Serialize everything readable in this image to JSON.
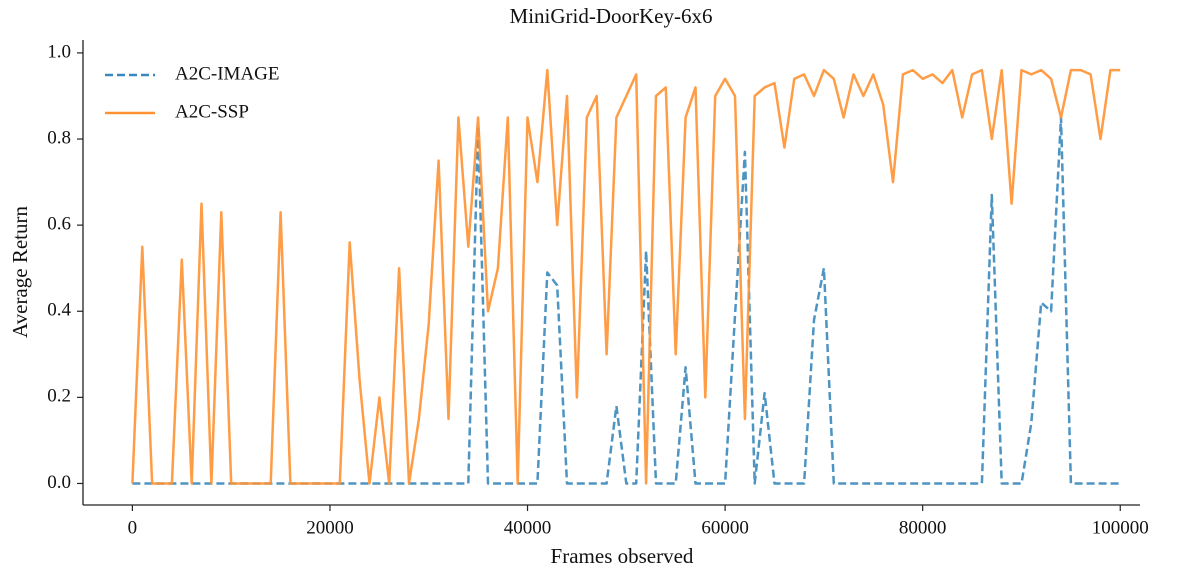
{
  "chart_data": {
    "type": "line",
    "title": "MiniGrid-DoorKey-6x6",
    "x_label": "Frames observed",
    "y_label": "Average Return",
    "x": [
      0,
      1000,
      2000,
      3000,
      4000,
      5000,
      6000,
      7000,
      8000,
      9000,
      10000,
      11000,
      12000,
      13000,
      14000,
      15000,
      16000,
      17000,
      18000,
      19000,
      20000,
      21000,
      22000,
      23000,
      24000,
      25000,
      26000,
      27000,
      28000,
      29000,
      30000,
      31000,
      32000,
      33000,
      34000,
      35000,
      36000,
      37000,
      38000,
      39000,
      40000,
      41000,
      42000,
      43000,
      44000,
      45000,
      46000,
      47000,
      48000,
      49000,
      50000,
      51000,
      52000,
      53000,
      54000,
      55000,
      56000,
      57000,
      58000,
      59000,
      60000,
      61000,
      62000,
      63000,
      64000,
      65000,
      66000,
      67000,
      68000,
      69000,
      70000,
      71000,
      72000,
      73000,
      74000,
      75000,
      76000,
      77000,
      78000,
      79000,
      80000,
      81000,
      82000,
      83000,
      84000,
      85000,
      86000,
      87000,
      88000,
      89000,
      90000,
      91000,
      92000,
      93000,
      94000,
      95000,
      96000,
      97000,
      98000,
      99000,
      100000
    ],
    "series": [
      {
        "name": "A2C-IMAGE",
        "color": "#3a88bd",
        "dash": true,
        "values": [
          0,
          0,
          0,
          0,
          0,
          0,
          0,
          0,
          0,
          0,
          0,
          0,
          0,
          0,
          0,
          0,
          0,
          0,
          0,
          0,
          0,
          0,
          0,
          0,
          0,
          0,
          0,
          0,
          0,
          0,
          0,
          0,
          0,
          0,
          0,
          0.83,
          0,
          0,
          0,
          0,
          0,
          0,
          0.49,
          0.46,
          0,
          0,
          0,
          0,
          0,
          0.18,
          0,
          0,
          0.54,
          0,
          0,
          0,
          0.27,
          0,
          0,
          0,
          0,
          0.39,
          0.77,
          0,
          0.21,
          0,
          0,
          0,
          0,
          0.38,
          0.5,
          0,
          0,
          0,
          0,
          0,
          0,
          0,
          0,
          0,
          0,
          0,
          0,
          0,
          0,
          0,
          0,
          0.67,
          0,
          0,
          0,
          0.14,
          0.42,
          0.4,
          0.85,
          0,
          0,
          0,
          0,
          0,
          0
        ]
      },
      {
        "name": "A2C-SSP",
        "color": "#ff9233",
        "dash": false,
        "values": [
          0,
          0.55,
          0,
          0,
          0,
          0.52,
          0,
          0.65,
          0,
          0.63,
          0,
          0,
          0,
          0,
          0,
          0.63,
          0,
          0,
          0,
          0,
          0,
          0,
          0.56,
          0.24,
          0,
          0.2,
          0,
          0.5,
          0,
          0.15,
          0.37,
          0.75,
          0.15,
          0.85,
          0.55,
          0.85,
          0.4,
          0.5,
          0.85,
          0,
          0.85,
          0.7,
          0.96,
          0.6,
          0.9,
          0.2,
          0.85,
          0.9,
          0.3,
          0.85,
          0.9,
          0.95,
          0,
          0.9,
          0.92,
          0.3,
          0.85,
          0.92,
          0.2,
          0.9,
          0.94,
          0.9,
          0.15,
          0.9,
          0.92,
          0.93,
          0.78,
          0.94,
          0.95,
          0.9,
          0.96,
          0.94,
          0.85,
          0.95,
          0.9,
          0.95,
          0.88,
          0.7,
          0.95,
          0.96,
          0.94,
          0.95,
          0.93,
          0.96,
          0.85,
          0.95,
          0.96,
          0.8,
          0.96,
          0.65,
          0.96,
          0.95,
          0.96,
          0.94,
          0.85,
          0.96,
          0.96,
          0.95,
          0.8,
          0.96,
          0.96
        ]
      }
    ],
    "xlim": [
      -5000,
      102000
    ],
    "ylim": [
      -0.05,
      1.03
    ],
    "xticks": [
      0,
      20000,
      40000,
      60000,
      80000,
      100000
    ],
    "yticks": [
      {
        "value": 0,
        "label": "0.0"
      },
      {
        "value": 0.2,
        "label": "0.2"
      },
      {
        "value": 0.4,
        "label": "0.4"
      },
      {
        "value": 0.6,
        "label": "0.6"
      },
      {
        "value": 0.8,
        "label": "0.8"
      },
      {
        "value": 1,
        "label": "1.0"
      }
    ],
    "legend": "upper left"
  }
}
